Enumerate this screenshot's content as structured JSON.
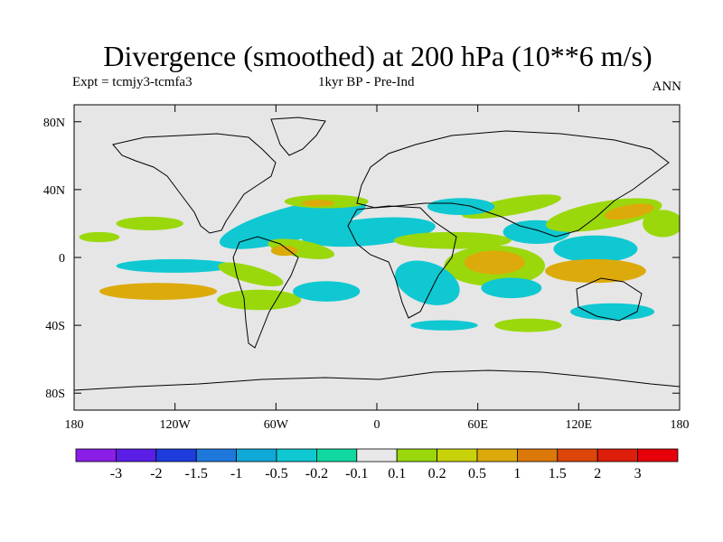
{
  "title": "Divergence (smoothed) at 200 hPa (10**6 m/s)",
  "experiment": "Expt = tcmjy3-tcmfa3",
  "period": "1kyr BP - Pre-Ind",
  "season": "ANN",
  "axes": {
    "lat_ticks": [
      "80N",
      "40N",
      "0",
      "40S",
      "80S"
    ],
    "lat_values": [
      80,
      40,
      0,
      -40,
      -80
    ],
    "lon_ticks": [
      "180",
      "120W",
      "60W",
      "0",
      "60E",
      "120E",
      "180"
    ],
    "lon_values": [
      -180,
      -120,
      -60,
      0,
      60,
      120,
      180
    ],
    "lat_range": [
      -90,
      90
    ],
    "lon_range": [
      -180,
      180
    ]
  },
  "colorbar": {
    "labels": [
      "-3",
      "-2",
      "-1.5",
      "-1",
      "-0.5",
      "-0.2",
      "-0.1",
      "0.1",
      "0.2",
      "0.5",
      "1",
      "1.5",
      "2",
      "3"
    ],
    "colors": [
      "#8a1ee6",
      "#5a1ee6",
      "#1e3cdc",
      "#1e78dc",
      "#10a8d8",
      "#10c8d2",
      "#10d8a0",
      "#e8e8e8",
      "#9ad80c",
      "#c8d20a",
      "#dcaa0a",
      "#dc780a",
      "#dc460a",
      "#dc1e0a",
      "#e6000a"
    ]
  },
  "background_color": "#e6e6e6",
  "regions": [
    {
      "color": "#10c8d2",
      "cx": -50,
      "cy": 20,
      "rx": 45,
      "ry": 10,
      "rot": -15
    },
    {
      "color": "#10c8d2",
      "cx": -5,
      "cy": 15,
      "rx": 40,
      "ry": 8,
      "rot": -5
    },
    {
      "color": "#9ad80c",
      "cx": -45,
      "cy": 5,
      "rx": 20,
      "ry": 5,
      "rot": 10
    },
    {
      "color": "#dcaa0a",
      "cx": -55,
      "cy": 4,
      "rx": 8,
      "ry": 3,
      "rot": 0
    },
    {
      "color": "#9ad80c",
      "cx": 45,
      "cy": 10,
      "rx": 35,
      "ry": 5,
      "rot": 0
    },
    {
      "color": "#9ad80c",
      "cx": 80,
      "cy": 30,
      "rx": 30,
      "ry": 5,
      "rot": -10
    },
    {
      "color": "#10c8d2",
      "cx": 95,
      "cy": 15,
      "rx": 20,
      "ry": 7,
      "rot": 0
    },
    {
      "color": "#9ad80c",
      "cx": 70,
      "cy": -5,
      "rx": 30,
      "ry": 12,
      "rot": 0
    },
    {
      "color": "#dcaa0a",
      "cx": 70,
      "cy": -3,
      "rx": 18,
      "ry": 7,
      "rot": 0
    },
    {
      "color": "#10c8d2",
      "cx": 30,
      "cy": -15,
      "rx": 20,
      "ry": 12,
      "rot": 20
    },
    {
      "color": "#10c8d2",
      "cx": 80,
      "cy": -18,
      "rx": 18,
      "ry": 6,
      "rot": 0
    },
    {
      "color": "#9ad80c",
      "cx": 135,
      "cy": 25,
      "rx": 35,
      "ry": 8,
      "rot": -10
    },
    {
      "color": "#dcaa0a",
      "cx": 150,
      "cy": 27,
      "rx": 15,
      "ry": 4,
      "rot": -10
    },
    {
      "color": "#10c8d2",
      "cx": 130,
      "cy": 5,
      "rx": 25,
      "ry": 8,
      "rot": 0
    },
    {
      "color": "#dcaa0a",
      "cx": 130,
      "cy": -8,
      "rx": 30,
      "ry": 7,
      "rot": 0
    },
    {
      "color": "#10c8d2",
      "cx": 140,
      "cy": -32,
      "rx": 25,
      "ry": 5,
      "rot": 0
    },
    {
      "color": "#dcaa0a",
      "cx": -130,
      "cy": -20,
      "rx": 35,
      "ry": 5,
      "rot": 0
    },
    {
      "color": "#10c8d2",
      "cx": -120,
      "cy": -5,
      "rx": 35,
      "ry": 4,
      "rot": 0
    },
    {
      "color": "#9ad80c",
      "cx": -70,
      "cy": -25,
      "rx": 25,
      "ry": 6,
      "rot": 0
    },
    {
      "color": "#9ad80c",
      "cx": -75,
      "cy": -10,
      "rx": 20,
      "ry": 5,
      "rot": 15
    },
    {
      "color": "#10c8d2",
      "cx": -30,
      "cy": -20,
      "rx": 20,
      "ry": 6,
      "rot": 0
    },
    {
      "color": "#9ad80c",
      "cx": -135,
      "cy": 20,
      "rx": 20,
      "ry": 4,
      "rot": 0
    },
    {
      "color": "#9ad80c",
      "cx": -165,
      "cy": 12,
      "rx": 12,
      "ry": 3,
      "rot": 0
    },
    {
      "color": "#10c8d2",
      "cx": 50,
      "cy": 30,
      "rx": 20,
      "ry": 5,
      "rot": 0
    },
    {
      "color": "#9ad80c",
      "cx": -30,
      "cy": 33,
      "rx": 25,
      "ry": 4,
      "rot": 0
    },
    {
      "color": "#dcaa0a",
      "cx": -35,
      "cy": 32,
      "rx": 10,
      "ry": 2,
      "rot": 0
    },
    {
      "color": "#9ad80c",
      "cx": 90,
      "cy": -40,
      "rx": 20,
      "ry": 4,
      "rot": 0
    },
    {
      "color": "#10c8d2",
      "cx": 40,
      "cy": -40,
      "rx": 20,
      "ry": 3,
      "rot": 0
    },
    {
      "color": "#9ad80c",
      "cx": 170,
      "cy": 20,
      "rx": 12,
      "ry": 8,
      "rot": 0
    }
  ]
}
